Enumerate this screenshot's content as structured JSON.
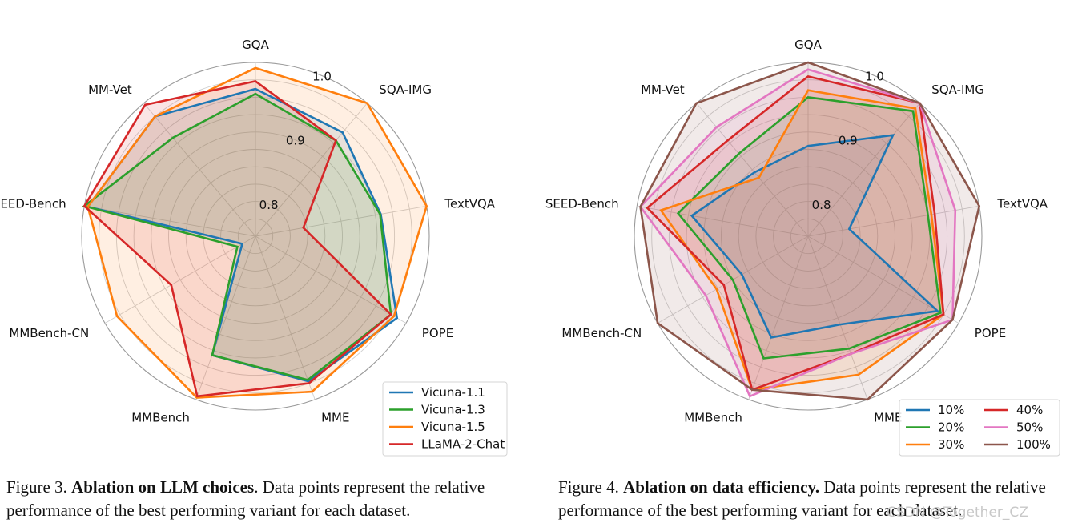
{
  "chart_data": [
    {
      "type": "radar",
      "axes": [
        "GQA",
        "SQA-IMG",
        "TextVQA",
        "POPE",
        "MME",
        "MMBench",
        "MMBench-CN",
        "SEED-Bench",
        "MM-Vet"
      ],
      "rlim": [
        0.75,
        1.0
      ],
      "rticks": [
        0.8,
        0.9,
        1.0
      ],
      "rtick_labels": [
        "0.8",
        "0.9",
        "1.0"
      ],
      "series": [
        {
          "name": "Vicuna-1.1",
          "color": "#1f77b4",
          "values": [
            0.962,
            0.945,
            0.933,
            0.985,
            0.972,
            0.932,
            0.772,
            0.995,
            0.975
          ]
        },
        {
          "name": "Vicuna-1.3",
          "color": "#2ca02c",
          "values": [
            0.955,
            0.93,
            0.932,
            0.975,
            0.97,
            0.932,
            0.78,
            1.0,
            0.935
          ]
        },
        {
          "name": "Vicuna-1.5",
          "color": "#ff7f0e",
          "values": [
            0.992,
            1.0,
            1.0,
            0.98,
            0.988,
            0.997,
            0.98,
            0.995,
            0.975
          ]
        },
        {
          "name": "LLaMA-2-Chat",
          "color": "#d62728",
          "values": [
            0.973,
            0.93,
            0.82,
            0.975,
            0.975,
            0.995,
            0.89,
            1.0,
            0.997
          ]
        }
      ],
      "legend": {
        "position": "lower-right",
        "ncol": 1
      }
    },
    {
      "type": "radar",
      "axes": [
        "GQA",
        "SQA-IMG",
        "TextVQA",
        "POPE",
        "MME",
        "MMBench",
        "MMBench-CN",
        "SEED-Bench",
        "MM-Vet"
      ],
      "rlim": [
        0.75,
        1.0
      ],
      "rticks": [
        0.8,
        0.9,
        1.0
      ],
      "rtick_labels": [
        "0.8",
        "0.9",
        "1.0"
      ],
      "series": [
        {
          "name": "10%",
          "color": "#1f77b4",
          "values": [
            0.88,
            0.94,
            0.81,
            0.965,
            0.885,
            0.905,
            0.86,
            0.92,
            0.87
          ]
        },
        {
          "name": "20%",
          "color": "#2ca02c",
          "values": [
            0.95,
            0.985,
            0.925,
            0.97,
            0.922,
            0.937,
            0.875,
            0.94,
            0.905
          ]
        },
        {
          "name": "30%",
          "color": "#ff7f0e",
          "values": [
            0.96,
            0.99,
            0.93,
            0.975,
            0.962,
            0.985,
            0.902,
            0.965,
            0.86
          ]
        },
        {
          "name": "40%",
          "color": "#d62728",
          "values": [
            0.98,
            1.0,
            0.935,
            0.975,
            0.93,
            0.985,
            0.89,
            0.985,
            0.93
          ]
        },
        {
          "name": "50%",
          "color": "#e377c2",
          "values": [
            0.99,
            1.0,
            0.965,
            0.99,
            0.93,
            0.995,
            0.92,
            0.995,
            0.955
          ]
        },
        {
          "name": "100%",
          "color": "#8c564b",
          "values": [
            1.0,
            1.0,
            1.0,
            0.99,
            1.0,
            0.985,
            1.0,
            0.995,
            1.0
          ]
        }
      ],
      "legend": {
        "position": "lower-right",
        "ncol": 2
      }
    }
  ],
  "captions": {
    "left": {
      "prefix": "Figure 3. ",
      "title": "Ablation on LLM choices",
      "body": ". Data points represent the relative performance of the best performing variant for each dataset."
    },
    "right": {
      "prefix": "Figure 4. ",
      "title": "Ablation on data efficiency.",
      "body": " Data points represent the relative performance of the best performing variant for each dataset."
    }
  },
  "watermark": "CSDN @Together_CZ"
}
